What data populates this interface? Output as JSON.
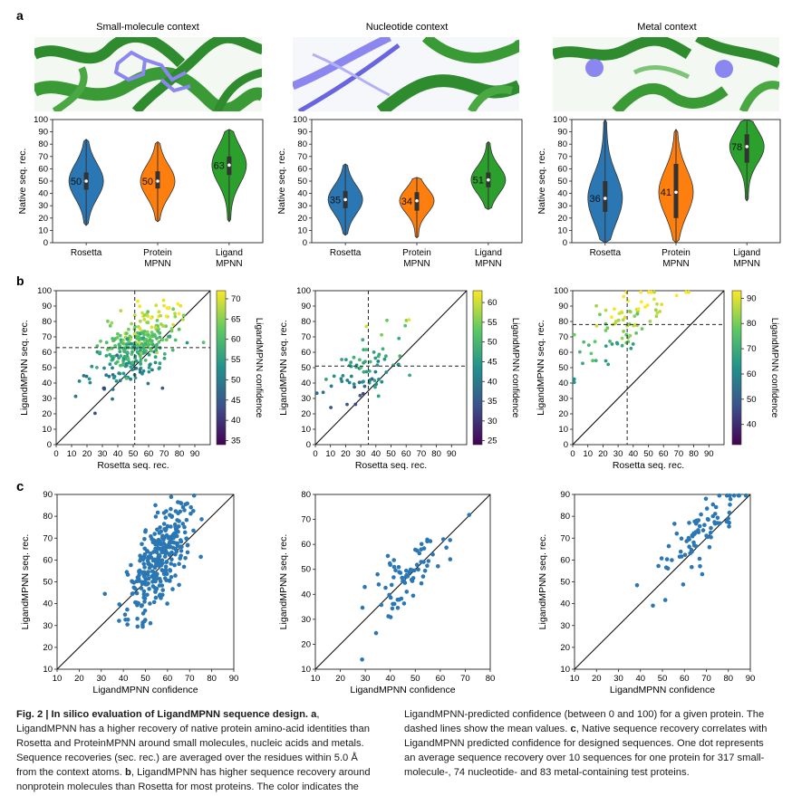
{
  "colors": {
    "rosetta": "#2a77b4",
    "protein_mpnn": "#ff7f0e",
    "ligand_mpnn": "#2ca02c",
    "scatter": "#2a77b4",
    "structure_green": "#2e8b2e",
    "structure_purple": "#8b86f0"
  },
  "panel_labels": {
    "a": "a",
    "b": "b",
    "c": "c"
  },
  "contexts": [
    {
      "title": "Small-molecule context"
    },
    {
      "title": "Nucleotide context"
    },
    {
      "title": "Metal context"
    }
  ],
  "chart_data": [
    {
      "panel": "a",
      "type": "violin",
      "title": "Small-molecule context",
      "ylabel": "Native seq. rec.",
      "ylim": [
        0,
        100
      ],
      "yticks": [
        0,
        10,
        20,
        30,
        40,
        50,
        60,
        70,
        80,
        90,
        100
      ],
      "categories": [
        "Rosetta",
        "Protein\nMPNN",
        "Ligand\nMPNN"
      ],
      "category_lines": [
        [
          "Rosetta"
        ],
        [
          "Protein",
          "MPNN"
        ],
        [
          "Ligand",
          "MPNN"
        ]
      ],
      "medians": [
        50,
        50,
        63
      ],
      "ranges": [
        [
          14,
          84
        ],
        [
          17,
          82
        ],
        [
          17,
          92
        ]
      ],
      "iqr": [
        [
          43,
          57
        ],
        [
          44,
          58
        ],
        [
          55,
          70
        ]
      ]
    },
    {
      "panel": "a",
      "type": "violin",
      "title": "Nucleotide context",
      "ylabel": "Native seq. rec.",
      "ylim": [
        0,
        100
      ],
      "yticks": [
        0,
        10,
        20,
        30,
        40,
        50,
        60,
        70,
        80,
        90,
        100
      ],
      "categories": [
        "Rosetta",
        "Protein\nMPNN",
        "Ligand\nMPNN"
      ],
      "category_lines": [
        [
          "Rosetta"
        ],
        [
          "Protein",
          "MPNN"
        ],
        [
          "Ligand",
          "MPNN"
        ]
      ],
      "medians": [
        35,
        34,
        51
      ],
      "ranges": [
        [
          6,
          64
        ],
        [
          4,
          53
        ],
        [
          27,
          82
        ]
      ],
      "iqr": [
        [
          28,
          42
        ],
        [
          26,
          41
        ],
        [
          45,
          57
        ]
      ]
    },
    {
      "panel": "a",
      "type": "violin",
      "title": "Metal context",
      "ylabel": "Native seq. rec.",
      "ylim": [
        0,
        100
      ],
      "yticks": [
        0,
        10,
        20,
        30,
        40,
        50,
        60,
        70,
        80,
        90,
        100
      ],
      "categories": [
        "Rosetta",
        "Protein\nMPNN",
        "Ligand\nMPNN"
      ],
      "category_lines": [
        [
          "Rosetta"
        ],
        [
          "Protein",
          "MPNN"
        ],
        [
          "Ligand",
          "MPNN"
        ]
      ],
      "medians": [
        36,
        41,
        78
      ],
      "ranges": [
        [
          0,
          100
        ],
        [
          0,
          92
        ],
        [
          34,
          100
        ]
      ],
      "iqr": [
        [
          25,
          50
        ],
        [
          20,
          64
        ],
        [
          65,
          88
        ]
      ]
    },
    {
      "panel": "b",
      "type": "scatter",
      "xlabel": "Rosetta seq. rec.",
      "ylabel": "LigandMPNN seq. rec.",
      "xlim": [
        0,
        100
      ],
      "ylim": [
        0,
        100
      ],
      "xticks": [
        0,
        10,
        20,
        30,
        40,
        50,
        60,
        70,
        80,
        90
      ],
      "yticks": [
        0,
        10,
        20,
        30,
        40,
        50,
        60,
        70,
        80,
        90,
        100
      ],
      "colorbar_label": "LigandMPNN confidence",
      "colorbar_range": [
        34,
        72
      ],
      "colorbar_ticks": [
        35,
        40,
        45,
        50,
        55,
        60,
        65,
        70
      ],
      "mean_x": 51,
      "mean_y": 63,
      "n_points": 317
    },
    {
      "panel": "b",
      "type": "scatter",
      "xlabel": "Rosetta seq. rec.",
      "ylabel": "LigandMPNN seq. rec.",
      "xlim": [
        0,
        100
      ],
      "ylim": [
        0,
        100
      ],
      "xticks": [
        0,
        10,
        20,
        30,
        40,
        50,
        60,
        70,
        80,
        90
      ],
      "yticks": [
        0,
        10,
        20,
        30,
        40,
        50,
        60,
        70,
        80,
        90,
        100
      ],
      "colorbar_label": "LigandMPNN confidence",
      "colorbar_range": [
        24,
        63
      ],
      "colorbar_ticks": [
        25,
        30,
        35,
        40,
        45,
        50,
        55,
        60
      ],
      "mean_x": 35,
      "mean_y": 51,
      "n_points": 74
    },
    {
      "panel": "b",
      "type": "scatter",
      "xlabel": "Rosetta seq. rec.",
      "ylabel": "LigandMPNN seq. rec.",
      "xlim": [
        0,
        100
      ],
      "ylim": [
        0,
        100
      ],
      "xticks": [
        0,
        10,
        20,
        30,
        40,
        50,
        60,
        70,
        80,
        90
      ],
      "yticks": [
        0,
        10,
        20,
        30,
        40,
        50,
        60,
        70,
        80,
        90,
        100
      ],
      "colorbar_label": "LigandMPNN confidence",
      "colorbar_range": [
        32,
        93
      ],
      "colorbar_ticks": [
        40,
        50,
        60,
        70,
        80,
        90
      ],
      "mean_x": 36,
      "mean_y": 78,
      "n_points": 83
    },
    {
      "panel": "c",
      "type": "scatter",
      "xlabel": "LigandMPNN confidence",
      "ylabel": "LigandMPNN seq. rec.",
      "xlim": [
        10,
        90
      ],
      "ylim": [
        10,
        90
      ],
      "xticks": [
        10,
        20,
        30,
        40,
        50,
        60,
        70,
        80,
        90
      ],
      "yticks": [
        10,
        20,
        30,
        40,
        50,
        60,
        70,
        80,
        90
      ],
      "n_points": 317
    },
    {
      "panel": "c",
      "type": "scatter",
      "xlabel": "LigandMPNN confidence",
      "ylabel": "LigandMPNN seq. rec.",
      "xlim": [
        10,
        80
      ],
      "ylim": [
        10,
        80
      ],
      "xticks": [
        10,
        20,
        30,
        40,
        50,
        60,
        70,
        80
      ],
      "yticks": [
        10,
        20,
        30,
        40,
        50,
        60,
        70,
        80
      ],
      "n_points": 74
    },
    {
      "panel": "c",
      "type": "scatter",
      "xlabel": "LigandMPNN confidence",
      "ylabel": "LigandMPNN seq. rec.",
      "xlim": [
        10,
        90
      ],
      "ylim": [
        10,
        90
      ],
      "xticks": [
        10,
        20,
        30,
        40,
        50,
        60,
        70,
        80,
        90
      ],
      "yticks": [
        10,
        20,
        30,
        40,
        50,
        60,
        70,
        80,
        90
      ],
      "n_points": 83
    }
  ],
  "caption": {
    "fig_label": "Fig. 2 | In silico evaluation of LigandMPNN sequence design.",
    "a_label": "a",
    "a_text": ", LigandMPNN has a higher recovery of native protein amino-acid identities than Rosetta and ProteinMPNN around small molecules, nucleic acids and metals. Sequence recoveries (sec. rec.) are averaged over the residues within 5.0 Å from the context atoms.",
    "b_label": "b",
    "b_text": ", LigandMPNN has higher sequence recovery around nonprotein molecules than Rosetta for most proteins. The color indicates the",
    "right_text_1": "LigandMPNN-predicted confidence (between 0 and 100) for a given protein. The dashed lines show the mean values.",
    "c_label": "c",
    "right_text_2": ", Native sequence recovery correlates with LigandMPNN predicted confidence for designed sequences. One dot represents an average sequence recovery over 10 sequences for one protein for 317 small-molecule-, 74 nucleotide- and 83 metal-containing test proteins."
  }
}
